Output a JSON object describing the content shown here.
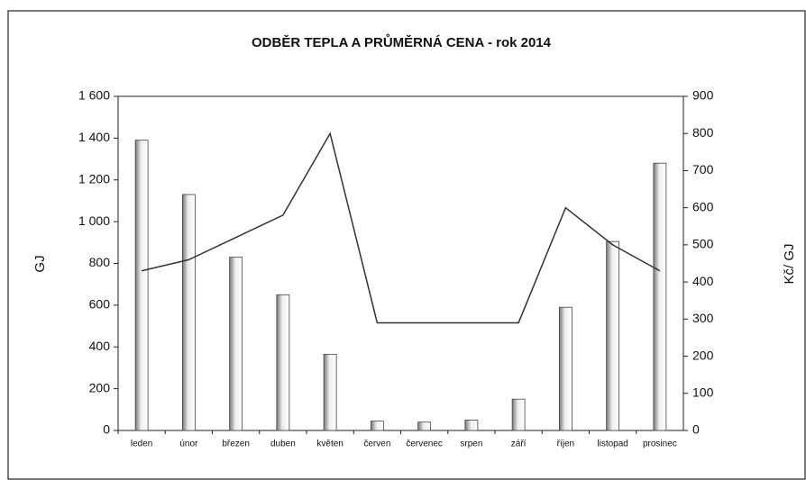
{
  "chart_data": {
    "type": "bar",
    "title": "ODBĚR TEPLA A  PRŮMĚRNÁ CENA - rok 2014",
    "y_label": "GJ",
    "y2_label": "Kč/ GJ",
    "categories": [
      "leden",
      "únor",
      "březen",
      "duben",
      "květen",
      "červen",
      "červenec",
      "srpen",
      "září",
      "říjen",
      "listopad",
      "prosinec"
    ],
    "series": [
      {
        "type": "bar",
        "color": "#b8b8b8",
        "values": [
          1390,
          1130,
          830,
          650,
          365,
          45,
          40,
          50,
          150,
          590,
          905,
          1280
        ]
      },
      {
        "type": "line",
        "axis": "y2",
        "color": "#333333",
        "values": [
          430,
          460,
          520,
          580,
          800,
          290,
          290,
          290,
          290,
          600,
          500,
          430
        ]
      }
    ],
    "ylim": [
      0,
      1600
    ],
    "yticks": [
      0,
      200,
      400,
      600,
      800,
      {
        "value": 1000,
        "label": "1 000"
      },
      {
        "value": 1200,
        "label": "1 200"
      },
      {
        "value": 1400,
        "label": "1 400"
      },
      {
        "value": 1600,
        "label": "1 600"
      }
    ],
    "y2lim": [
      0,
      900
    ],
    "y2ticks": [
      0,
      100,
      200,
      300,
      400,
      500,
      600,
      700,
      800,
      900
    ]
  }
}
